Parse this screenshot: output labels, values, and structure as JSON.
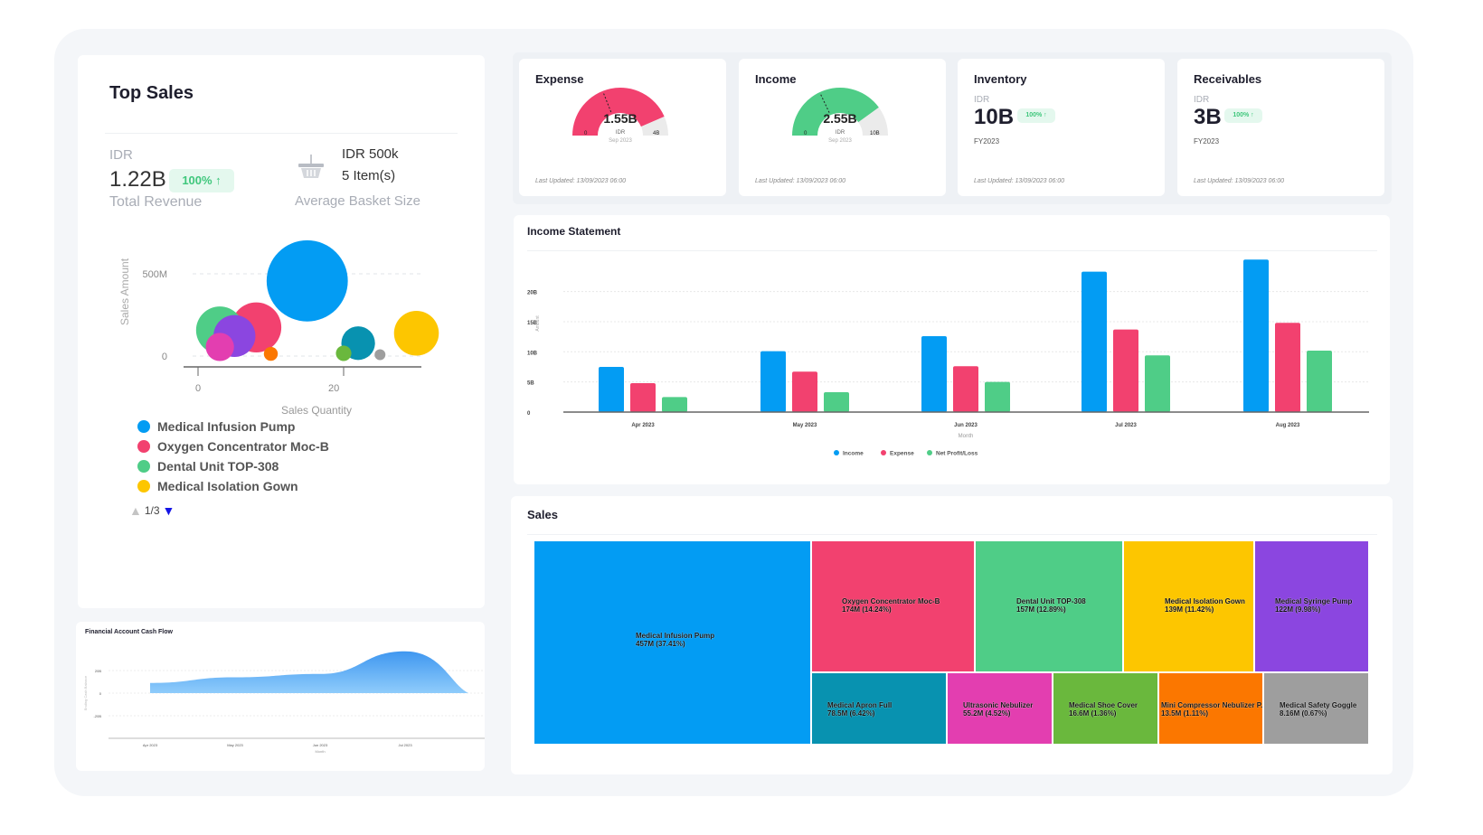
{
  "top_sales": {
    "title": "Top Sales",
    "currency": "IDR",
    "total_revenue": "1.22B",
    "revenue_change": "100% ↑",
    "total_revenue_label": "Total Revenue",
    "basket_amount": "IDR 500k",
    "basket_items": "5 Item(s)",
    "basket_label": "Average Basket Size",
    "pager": "1/3",
    "legend": [
      {
        "label": "Medical Infusion Pump",
        "color": "#039cf3"
      },
      {
        "label": "Oxygen Concentrator Moc-B",
        "color": "#f2416f"
      },
      {
        "label": "Dental Unit TOP-308",
        "color": "#4fcd87"
      },
      {
        "label": "Medical Isolation Gown",
        "color": "#fdc600"
      }
    ]
  },
  "chart_data": [
    {
      "type": "scatter",
      "xlabel": "Sales Quantity",
      "ylabel": "Sales Amount",
      "x_ticks": [
        "0",
        "20"
      ],
      "y_ticks": [
        "0",
        "500M"
      ],
      "points": [
        {
          "name": "Medical Infusion Pump",
          "x": 15,
          "y": 457,
          "size": 457,
          "color": "#039cf3"
        },
        {
          "name": "Oxygen Concentrator Moc-B",
          "x": 8,
          "y": 174,
          "size": 174,
          "color": "#f2416f"
        },
        {
          "name": "Dental Unit TOP-308",
          "x": 3,
          "y": 157,
          "size": 157,
          "color": "#4fcd87"
        },
        {
          "name": "Medical Isolation Gown",
          "x": 30,
          "y": 139,
          "size": 139,
          "color": "#fdc600"
        },
        {
          "name": "Medical Syringe Pump",
          "x": 5,
          "y": 122,
          "size": 122,
          "color": "#8b46e0"
        },
        {
          "name": "Medical Apron Full",
          "x": 22,
          "y": 78.5,
          "size": 78.5,
          "color": "#0892b0"
        },
        {
          "name": "Ultrasonic Nebulizer",
          "x": 3,
          "y": 55.2,
          "size": 55.2,
          "color": "#e33eb0"
        },
        {
          "name": "Medical Shoe Cover",
          "x": 20,
          "y": 16.6,
          "size": 16.6,
          "color": "#6ab83d"
        },
        {
          "name": "Mini Compressor Nebulizer P...",
          "x": 10,
          "y": 13.5,
          "size": 13.5,
          "color": "#fb7700"
        },
        {
          "name": "Medical Safety Goggle",
          "x": 25,
          "y": 8.16,
          "size": 8.16,
          "color": "#9e9e9e"
        }
      ]
    },
    {
      "type": "bar",
      "title": "Income Statement",
      "xlabel": "Month",
      "ylabel": "Amount",
      "categories": [
        "Apr 2023",
        "May 2023",
        "Jun 2023",
        "Jul 2023",
        "Aug 2023"
      ],
      "y_ticks": [
        "0",
        "5B",
        "10B",
        "15B",
        "20B"
      ],
      "ylim": [
        0,
        26
      ],
      "series": [
        {
          "name": "Income",
          "color": "#039cf3",
          "values": [
            7.5,
            10.1,
            12.6,
            23.3,
            25.3
          ]
        },
        {
          "name": "Expense",
          "color": "#f2416f",
          "values": [
            4.8,
            6.7,
            7.6,
            13.7,
            14.8
          ]
        },
        {
          "name": "Net Profit/Loss",
          "color": "#4fcd87",
          "values": [
            2.5,
            3.3,
            5.0,
            9.4,
            10.2
          ]
        }
      ]
    },
    {
      "type": "area",
      "title": "Financial Account Cash Flow",
      "xlabel": "Month",
      "ylabel": "Ending Cash Balance",
      "categories": [
        "Apr 2023",
        "May 2023",
        "Jun 2023",
        "Jul 2023"
      ],
      "y_ticks": [
        "20B",
        "0",
        "-20B"
      ],
      "values": [
        9,
        14,
        17,
        37
      ]
    }
  ],
  "kpis": {
    "last_updated": "Last Updated: 13/09/2023 06:00",
    "expense": {
      "title": "Expense",
      "value": "1.55B",
      "unit": "IDR",
      "period": "Sep 2023",
      "min": "0",
      "max": "4B",
      "fill": 0.87,
      "marker": 0.38,
      "color": "#f2416f"
    },
    "income": {
      "title": "Income",
      "value": "2.55B",
      "unit": "IDR",
      "period": "Sep 2023",
      "min": "0",
      "max": "10B",
      "fill": 0.8,
      "marker": 0.36,
      "color": "#4fcd87"
    },
    "inventory": {
      "title": "Inventory",
      "currency": "IDR",
      "value": "10B",
      "change": "100% ↑",
      "period": "FY2023"
    },
    "receivables": {
      "title": "Receivables",
      "currency": "IDR",
      "value": "3B",
      "change": "100% ↑",
      "period": "FY2023"
    }
  },
  "sales": {
    "title": "Sales",
    "treemap": [
      {
        "label": "Medical Infusion Pump",
        "value": "457M (37.41%)",
        "color": "#039cf3"
      },
      {
        "label": "Oxygen Concentrator Moc-B",
        "value": "174M (14.24%)",
        "color": "#f2416f"
      },
      {
        "label": "Dental Unit TOP-308",
        "value": "157M (12.89%)",
        "color": "#4fcd87"
      },
      {
        "label": "Medical Isolation Gown",
        "value": "139M (11.42%)",
        "color": "#fdc600"
      },
      {
        "label": "Medical Syringe Pump",
        "value": "122M (9.98%)",
        "color": "#8b46e0"
      },
      {
        "label": "Medical Apron Full",
        "value": "78.5M (6.42%)",
        "color": "#0892b0"
      },
      {
        "label": "Ultrasonic Nebulizer",
        "value": "55.2M (4.52%)",
        "color": "#e33eb0"
      },
      {
        "label": "Medical Shoe Cover",
        "value": "16.6M (1.36%)",
        "color": "#6ab83d"
      },
      {
        "label": "Mini Compressor Nebulizer P...",
        "value": "13.5M (1.11%)",
        "color": "#fb7700"
      },
      {
        "label": "Medical Safety Goggle",
        "value": "8.16M (0.67%)",
        "color": "#9e9e9e"
      }
    ]
  }
}
